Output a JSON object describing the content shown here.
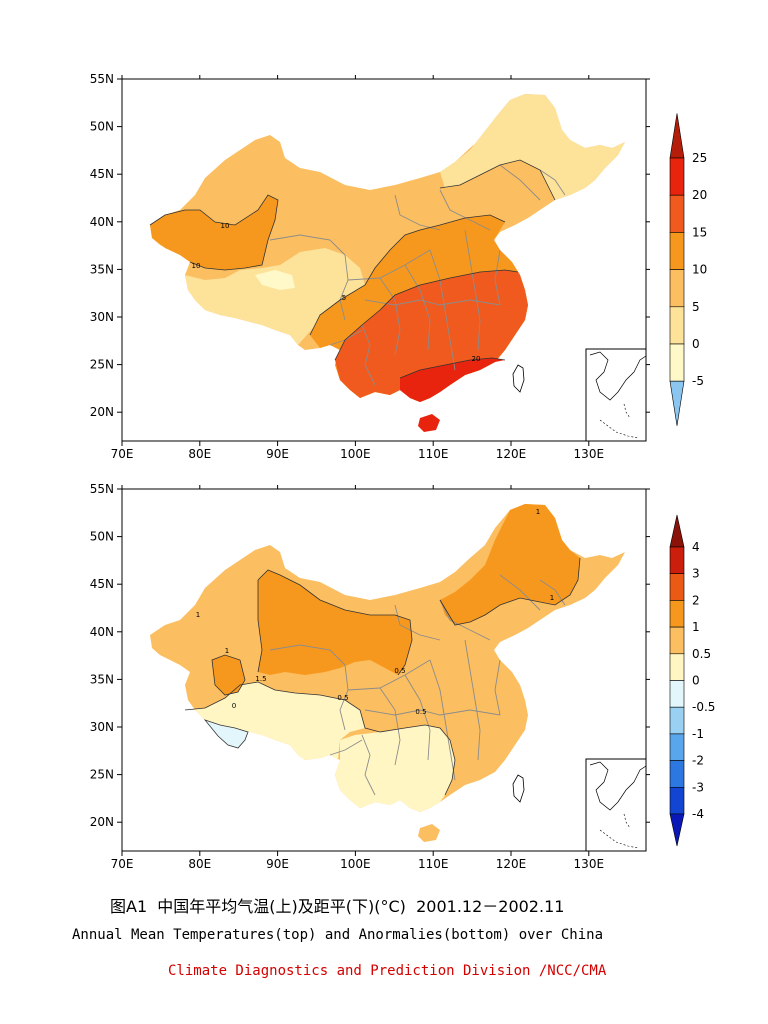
{
  "maps": [
    {
      "id": "top",
      "title": "",
      "lat_ticks": [
        "55N",
        "50N",
        "45N",
        "40N",
        "35N",
        "30N",
        "25N",
        "20N"
      ],
      "lon_ticks": [
        "70E",
        "80E",
        "90E",
        "100E",
        "110E",
        "120E",
        "130E"
      ],
      "colorbar": {
        "labels": [
          "25",
          "20",
          "15",
          "10",
          "5",
          "0",
          "-5"
        ],
        "colors": [
          "#b31d0a",
          "#e8240f",
          "#f05a1e",
          "#f7981e",
          "#fbbe60",
          "#fde29a",
          "#fff8c8",
          "#8ac6f0"
        ]
      },
      "contour_labels": [
        "10",
        "10",
        "5",
        "20"
      ]
    },
    {
      "id": "bottom",
      "title": "",
      "lat_ticks": [
        "55N",
        "50N",
        "45N",
        "40N",
        "35N",
        "30N",
        "25N",
        "20N"
      ],
      "lon_ticks": [
        "70E",
        "80E",
        "90E",
        "100E",
        "110E",
        "120E",
        "130E"
      ],
      "colorbar": {
        "labels": [
          "4",
          "3",
          "2",
          "1",
          "0.5",
          "0",
          "-0.5",
          "-1",
          "-2",
          "-3",
          "-4"
        ],
        "colors": [
          "#8a1208",
          "#cc1e0c",
          "#ea5a14",
          "#f7981e",
          "#fbbe60",
          "#fff6c4",
          "#e2f6fb",
          "#9ad0f2",
          "#5aa6ec",
          "#2c78e0",
          "#1246d2",
          "#0a18b8"
        ]
      },
      "contour_labels": [
        "1",
        "1",
        "1",
        "1.5",
        "0",
        "0.5",
        "0.5",
        "1",
        "0.5"
      ]
    }
  ],
  "caption": "图A1  中国年平均气温(上)及距平(下)(°C)  2001.12－2002.11",
  "subtitle": "Annual Mean Temperatures(top) and Anormalies(bottom) over China",
  "credit": "Climate Diagnostics and Prediction Division /NCC/CMA"
}
